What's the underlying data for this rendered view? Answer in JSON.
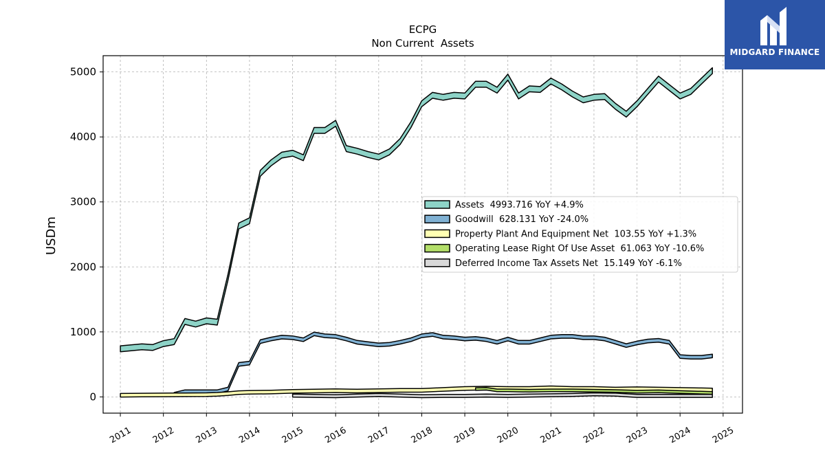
{
  "brand": {
    "name": "MIDGARD FINANCE",
    "color": "#2c55a8"
  },
  "chart_data": {
    "type": "area",
    "title": "ECPG",
    "subtitle": "Non Current  Assets",
    "ylabel": "USDm",
    "xlabel": "",
    "ylim": [
      -250,
      5250
    ],
    "xlim": [
      2010.6,
      2025.45
    ],
    "yticks": [
      0,
      1000,
      2000,
      3000,
      4000,
      5000
    ],
    "xticks": [
      2011,
      2012,
      2013,
      2014,
      2015,
      2016,
      2017,
      2018,
      2019,
      2020,
      2021,
      2022,
      2023,
      2024,
      2025
    ],
    "grid": true,
    "legend_position": "center-right",
    "series": [
      {
        "name": "Assets",
        "legend": "Assets  4993.716 YoY +4.9%",
        "color": "#8dd3c7",
        "band": 90,
        "x": [
          2011.0,
          2011.5,
          2011.75,
          2012.0,
          2012.25,
          2012.5,
          2012.75,
          2013.0,
          2013.25,
          2013.5,
          2013.75,
          2014.0,
          2014.25,
          2014.5,
          2014.75,
          2015.0,
          2015.25,
          2015.5,
          2015.75,
          2016.0,
          2016.25,
          2016.5,
          2016.75,
          2017.0,
          2017.25,
          2017.5,
          2017.75,
          2018.0,
          2018.25,
          2018.5,
          2018.75,
          2019.0,
          2019.25,
          2019.5,
          2019.75,
          2020.0,
          2020.25,
          2020.5,
          2020.75,
          2021.0,
          2021.25,
          2021.5,
          2021.75,
          2022.0,
          2022.25,
          2022.5,
          2022.75,
          2023.0,
          2023.25,
          2023.5,
          2023.75,
          2024.0,
          2024.25,
          2024.5,
          2024.75
        ],
        "y": [
          740,
          770,
          760,
          820,
          850,
          1160,
          1120,
          1170,
          1150,
          1840,
          2630,
          2710,
          3440,
          3600,
          3720,
          3750,
          3680,
          4100,
          4100,
          4210,
          3820,
          3780,
          3730,
          3690,
          3770,
          3930,
          4190,
          4510,
          4640,
          4610,
          4640,
          4630,
          4810,
          4810,
          4720,
          4920,
          4630,
          4740,
          4730,
          4860,
          4770,
          4660,
          4570,
          4610,
          4620,
          4470,
          4350,
          4510,
          4700,
          4890,
          4760,
          4630,
          4700,
          4860,
          5020
        ]
      },
      {
        "name": "Goodwill",
        "legend": "Goodwill  628.131 YoY -24.0%",
        "color": "#80b1d3",
        "band": 55,
        "x": [
          2012.25,
          2012.5,
          2012.75,
          2013.0,
          2013.25,
          2013.5,
          2013.75,
          2014.0,
          2014.25,
          2014.5,
          2014.75,
          2015.0,
          2015.25,
          2015.5,
          2015.75,
          2016.0,
          2016.25,
          2016.5,
          2016.75,
          2017.0,
          2017.25,
          2017.5,
          2017.75,
          2018.0,
          2018.25,
          2018.5,
          2018.75,
          2019.0,
          2019.25,
          2019.5,
          2019.75,
          2020.0,
          2020.25,
          2020.5,
          2020.75,
          2021.0,
          2021.25,
          2021.5,
          2021.75,
          2022.0,
          2022.25,
          2022.5,
          2022.75,
          2023.0,
          2023.25,
          2023.5,
          2023.75,
          2024.0,
          2024.25,
          2024.5,
          2024.75
        ],
        "y": [
          40,
          80,
          80,
          80,
          80,
          120,
          500,
          520,
          850,
          890,
          920,
          910,
          880,
          970,
          940,
          930,
          890,
          840,
          820,
          800,
          810,
          840,
          880,
          940,
          960,
          920,
          910,
          890,
          900,
          880,
          840,
          890,
          840,
          840,
          880,
          920,
          930,
          930,
          910,
          910,
          890,
          840,
          790,
          830,
          860,
          870,
          840,
          620,
          610,
          610,
          630
        ]
      },
      {
        "name": "Property Plant And Equipment Net",
        "legend": "Property Plant And Equipment Net  103.55 YoY +1.3%",
        "color": "#ffffb3",
        "band": 55,
        "x": [
          2011.0,
          2011.5,
          2012.0,
          2012.5,
          2013.0,
          2013.25,
          2013.5,
          2013.75,
          2014.0,
          2014.5,
          2015.0,
          2015.5,
          2016.0,
          2016.5,
          2017.0,
          2017.5,
          2018.0,
          2018.5,
          2019.0,
          2019.5,
          2020.0,
          2020.5,
          2021.0,
          2021.5,
          2022.0,
          2022.5,
          2023.0,
          2023.5,
          2024.0,
          2024.5,
          2024.75
        ],
        "y": [
          25,
          28,
          30,
          32,
          35,
          40,
          50,
          65,
          70,
          75,
          85,
          90,
          95,
          90,
          95,
          100,
          100,
          115,
          130,
          135,
          130,
          130,
          140,
          130,
          130,
          120,
          125,
          120,
          115,
          110,
          105
        ]
      },
      {
        "name": "Operating Lease Right Of Use Asset",
        "legend": "Operating Lease Right Of Use Asset  61.063 YoY -10.6%",
        "color": "#b3de69",
        "band": 40,
        "x": [
          2019.25,
          2019.5,
          2019.75,
          2020.0,
          2020.5,
          2021.0,
          2021.5,
          2022.0,
          2022.5,
          2023.0,
          2023.5,
          2024.0,
          2024.5,
          2024.75
        ],
        "y": [
          120,
          125,
          100,
          100,
          95,
          100,
          100,
          95,
          90,
          80,
          85,
          75,
          65,
          61
        ]
      },
      {
        "name": "Deferred Income Tax Assets Net",
        "legend": "Deferred Income Tax Assets Net  15.149 YoY -6.1%",
        "color": "#d9d9d9",
        "band": 45,
        "x": [
          2015.0,
          2015.5,
          2016.0,
          2016.5,
          2017.0,
          2017.5,
          2018.0,
          2018.5,
          2019.0,
          2019.5,
          2020.0,
          2020.5,
          2021.0,
          2021.5,
          2022.0,
          2022.5,
          2023.0,
          2023.5,
          2024.0,
          2024.5,
          2024.75
        ],
        "y": [
          20,
          15,
          10,
          20,
          30,
          20,
          10,
          15,
          15,
          20,
          15,
          20,
          25,
          30,
          40,
          35,
          15,
          15,
          15,
          15,
          15
        ]
      }
    ]
  }
}
